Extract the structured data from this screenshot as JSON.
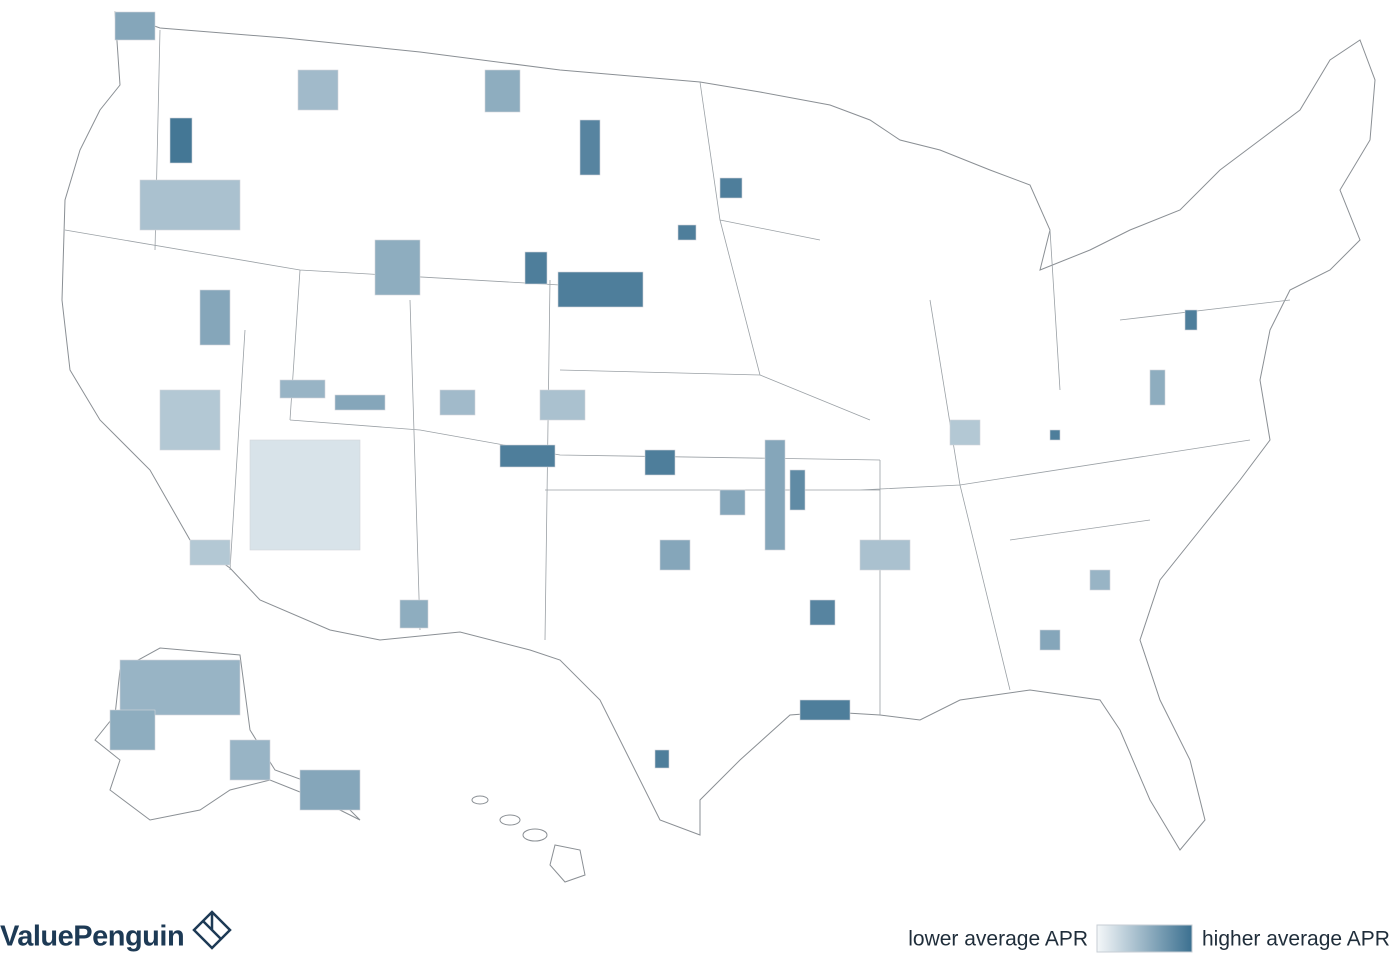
{
  "brand": {
    "name": "ValuePenguin"
  },
  "legend": {
    "low_label": "lower average APR",
    "high_label": "higher average APR",
    "low_color": "#f4f7f9",
    "high_color": "#3b7090"
  }
}
